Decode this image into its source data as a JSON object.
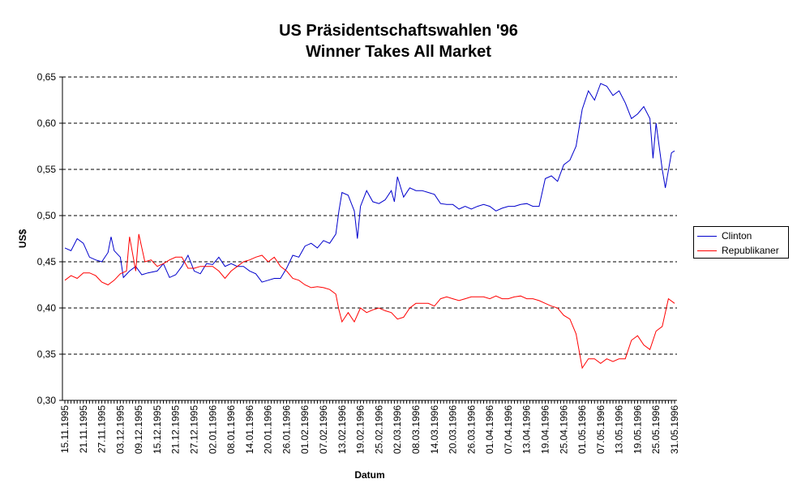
{
  "chart_data": {
    "type": "line",
    "title": "US Präsidentschaftswahlen '96",
    "subtitle": "Winner Takes All Market",
    "xlabel": "Datum",
    "ylabel": "US$",
    "ylim": [
      0.3,
      0.65
    ],
    "y_ticks": [
      "0,30",
      "0,35",
      "0,40",
      "0,45",
      "0,50",
      "0,55",
      "0,60",
      "0,65"
    ],
    "grid": "horizontal dashed",
    "legend_position": "right",
    "x_ticks": [
      "15.11.1995",
      "21.11.1995",
      "27.11.1995",
      "03.12.1995",
      "09.12.1995",
      "15.12.1995",
      "21.12.1995",
      "27.12.1995",
      "02.01.1996",
      "08.01.1996",
      "14.01.1996",
      "20.01.1996",
      "26.01.1996",
      "01.02.1996",
      "07.02.1996",
      "13.02.1996",
      "19.02.1996",
      "25.02.1996",
      "02.03.1996",
      "08.03.1996",
      "14.03.1996",
      "20.03.1996",
      "26.03.1996",
      "01.04.1996",
      "07.04.1996",
      "13.04.1996",
      "19.04.1996",
      "25.04.1996",
      "01.05.1996",
      "07.05.1996",
      "13.05.1996",
      "19.05.1996",
      "25.05.1996",
      "31.05.1996"
    ],
    "series": [
      {
        "name": "Clinton",
        "color": "#0000cc",
        "points": [
          [
            "15.11.1995",
            0.465
          ],
          [
            "17.11.1995",
            0.462
          ],
          [
            "19.11.1995",
            0.475
          ],
          [
            "21.11.1995",
            0.47
          ],
          [
            "23.11.1995",
            0.455
          ],
          [
            "25.11.1995",
            0.452
          ],
          [
            "27.11.1995",
            0.45
          ],
          [
            "29.11.1995",
            0.46
          ],
          [
            "30.11.1995",
            0.477
          ],
          [
            "01.12.1995",
            0.462
          ],
          [
            "03.12.1995",
            0.455
          ],
          [
            "04.12.1995",
            0.433
          ],
          [
            "06.12.1995",
            0.44
          ],
          [
            "08.12.1995",
            0.445
          ],
          [
            "10.12.1995",
            0.436
          ],
          [
            "12.12.1995",
            0.438
          ],
          [
            "15.12.1995",
            0.44
          ],
          [
            "17.12.1995",
            0.448
          ],
          [
            "19.12.1995",
            0.433
          ],
          [
            "21.12.1995",
            0.436
          ],
          [
            "23.12.1995",
            0.445
          ],
          [
            "25.12.1995",
            0.457
          ],
          [
            "27.12.1995",
            0.44
          ],
          [
            "29.12.1995",
            0.437
          ],
          [
            "31.12.1995",
            0.448
          ],
          [
            "02.01.1996",
            0.447
          ],
          [
            "04.01.1996",
            0.455
          ],
          [
            "06.01.1996",
            0.445
          ],
          [
            "08.01.1996",
            0.448
          ],
          [
            "10.01.1996",
            0.445
          ],
          [
            "12.01.1996",
            0.445
          ],
          [
            "14.01.1996",
            0.44
          ],
          [
            "16.01.1996",
            0.437
          ],
          [
            "18.01.1996",
            0.428
          ],
          [
            "20.01.1996",
            0.43
          ],
          [
            "22.01.1996",
            0.432
          ],
          [
            "24.01.1996",
            0.432
          ],
          [
            "26.01.1996",
            0.443
          ],
          [
            "28.01.1996",
            0.457
          ],
          [
            "30.01.1996",
            0.455
          ],
          [
            "01.02.1996",
            0.467
          ],
          [
            "03.02.1996",
            0.47
          ],
          [
            "05.02.1996",
            0.465
          ],
          [
            "07.02.1996",
            0.473
          ],
          [
            "09.02.1996",
            0.47
          ],
          [
            "11.02.1996",
            0.48
          ],
          [
            "12.02.1996",
            0.505
          ],
          [
            "13.02.1996",
            0.525
          ],
          [
            "15.02.1996",
            0.522
          ],
          [
            "17.02.1996",
            0.505
          ],
          [
            "18.02.1996",
            0.475
          ],
          [
            "19.02.1996",
            0.51
          ],
          [
            "21.02.1996",
            0.527
          ],
          [
            "23.02.1996",
            0.515
          ],
          [
            "25.02.1996",
            0.513
          ],
          [
            "27.02.1996",
            0.517
          ],
          [
            "29.02.1996",
            0.527
          ],
          [
            "01.03.1996",
            0.515
          ],
          [
            "02.03.1996",
            0.542
          ],
          [
            "04.03.1996",
            0.52
          ],
          [
            "06.03.1996",
            0.53
          ],
          [
            "08.03.1996",
            0.527
          ],
          [
            "10.03.1996",
            0.527
          ],
          [
            "12.03.1996",
            0.525
          ],
          [
            "14.03.1996",
            0.523
          ],
          [
            "16.03.1996",
            0.513
          ],
          [
            "18.03.1996",
            0.512
          ],
          [
            "20.03.1996",
            0.512
          ],
          [
            "22.03.1996",
            0.507
          ],
          [
            "24.03.1996",
            0.51
          ],
          [
            "26.03.1996",
            0.507
          ],
          [
            "28.03.1996",
            0.51
          ],
          [
            "30.03.1996",
            0.512
          ],
          [
            "01.04.1996",
            0.51
          ],
          [
            "03.04.1996",
            0.505
          ],
          [
            "05.04.1996",
            0.508
          ],
          [
            "07.04.1996",
            0.51
          ],
          [
            "09.04.1996",
            0.51
          ],
          [
            "11.04.1996",
            0.512
          ],
          [
            "13.04.1996",
            0.513
          ],
          [
            "15.04.1996",
            0.51
          ],
          [
            "17.04.1996",
            0.51
          ],
          [
            "19.04.1996",
            0.54
          ],
          [
            "21.04.1996",
            0.543
          ],
          [
            "23.04.1996",
            0.537
          ],
          [
            "25.04.1996",
            0.555
          ],
          [
            "27.04.1996",
            0.56
          ],
          [
            "29.04.1996",
            0.575
          ],
          [
            "01.05.1996",
            0.615
          ],
          [
            "03.05.1996",
            0.635
          ],
          [
            "05.05.1996",
            0.625
          ],
          [
            "07.05.1996",
            0.643
          ],
          [
            "09.05.1996",
            0.64
          ],
          [
            "11.05.1996",
            0.63
          ],
          [
            "13.05.1996",
            0.635
          ],
          [
            "15.05.1996",
            0.622
          ],
          [
            "17.05.1996",
            0.605
          ],
          [
            "19.05.1996",
            0.61
          ],
          [
            "21.05.1996",
            0.618
          ],
          [
            "23.05.1996",
            0.605
          ],
          [
            "24.05.1996",
            0.562
          ],
          [
            "25.05.1996",
            0.6
          ],
          [
            "27.05.1996",
            0.55
          ],
          [
            "28.05.1996",
            0.53
          ],
          [
            "30.05.1996",
            0.568
          ],
          [
            "31.05.1996",
            0.57
          ]
        ]
      },
      {
        "name": "Republikaner",
        "color": "#ff0000",
        "points": [
          [
            "15.11.1995",
            0.43
          ],
          [
            "17.11.1995",
            0.435
          ],
          [
            "19.11.1995",
            0.432
          ],
          [
            "21.11.1995",
            0.438
          ],
          [
            "23.11.1995",
            0.438
          ],
          [
            "25.11.1995",
            0.435
          ],
          [
            "27.11.1995",
            0.428
          ],
          [
            "29.11.1995",
            0.425
          ],
          [
            "01.12.1995",
            0.43
          ],
          [
            "03.12.1995",
            0.437
          ],
          [
            "05.12.1995",
            0.44
          ],
          [
            "06.12.1995",
            0.477
          ],
          [
            "08.12.1995",
            0.44
          ],
          [
            "09.12.1995",
            0.48
          ],
          [
            "11.12.1995",
            0.45
          ],
          [
            "13.12.1995",
            0.452
          ],
          [
            "15.12.1995",
            0.445
          ],
          [
            "17.12.1995",
            0.448
          ],
          [
            "19.12.1995",
            0.452
          ],
          [
            "21.12.1995",
            0.455
          ],
          [
            "23.12.1995",
            0.455
          ],
          [
            "25.12.1995",
            0.443
          ],
          [
            "27.12.1995",
            0.443
          ],
          [
            "29.12.1995",
            0.445
          ],
          [
            "31.12.1995",
            0.445
          ],
          [
            "02.01.1996",
            0.445
          ],
          [
            "04.01.1996",
            0.44
          ],
          [
            "06.01.1996",
            0.432
          ],
          [
            "08.01.1996",
            0.44
          ],
          [
            "10.01.1996",
            0.445
          ],
          [
            "12.01.1996",
            0.45
          ],
          [
            "14.01.1996",
            0.452
          ],
          [
            "16.01.1996",
            0.455
          ],
          [
            "18.01.1996",
            0.457
          ],
          [
            "20.01.1996",
            0.45
          ],
          [
            "22.01.1996",
            0.455
          ],
          [
            "24.01.1996",
            0.445
          ],
          [
            "26.01.1996",
            0.44
          ],
          [
            "28.01.1996",
            0.432
          ],
          [
            "30.01.1996",
            0.43
          ],
          [
            "01.02.1996",
            0.425
          ],
          [
            "03.02.1996",
            0.422
          ],
          [
            "05.02.1996",
            0.423
          ],
          [
            "07.02.1996",
            0.422
          ],
          [
            "09.02.1996",
            0.42
          ],
          [
            "11.02.1996",
            0.415
          ],
          [
            "12.02.1996",
            0.398
          ],
          [
            "13.02.1996",
            0.385
          ],
          [
            "15.02.1996",
            0.395
          ],
          [
            "17.02.1996",
            0.385
          ],
          [
            "19.02.1996",
            0.4
          ],
          [
            "21.02.1996",
            0.395
          ],
          [
            "23.02.1996",
            0.398
          ],
          [
            "25.02.1996",
            0.4
          ],
          [
            "27.02.1996",
            0.397
          ],
          [
            "29.02.1996",
            0.395
          ],
          [
            "02.03.1996",
            0.388
          ],
          [
            "04.03.1996",
            0.39
          ],
          [
            "06.03.1996",
            0.4
          ],
          [
            "08.03.1996",
            0.405
          ],
          [
            "10.03.1996",
            0.405
          ],
          [
            "12.03.1996",
            0.405
          ],
          [
            "14.03.1996",
            0.402
          ],
          [
            "16.03.1996",
            0.41
          ],
          [
            "18.03.1996",
            0.412
          ],
          [
            "20.03.1996",
            0.41
          ],
          [
            "22.03.1996",
            0.408
          ],
          [
            "24.03.1996",
            0.41
          ],
          [
            "26.03.1996",
            0.412
          ],
          [
            "28.03.1996",
            0.412
          ],
          [
            "30.03.1996",
            0.412
          ],
          [
            "01.04.1996",
            0.41
          ],
          [
            "03.04.1996",
            0.413
          ],
          [
            "05.04.1996",
            0.41
          ],
          [
            "07.04.1996",
            0.41
          ],
          [
            "09.04.1996",
            0.412
          ],
          [
            "11.04.1996",
            0.413
          ],
          [
            "13.04.1996",
            0.41
          ],
          [
            "15.04.1996",
            0.41
          ],
          [
            "17.04.1996",
            0.408
          ],
          [
            "19.04.1996",
            0.405
          ],
          [
            "21.04.1996",
            0.402
          ],
          [
            "23.04.1996",
            0.4
          ],
          [
            "25.04.1996",
            0.392
          ],
          [
            "27.04.1996",
            0.388
          ],
          [
            "29.04.1996",
            0.372
          ],
          [
            "01.05.1996",
            0.335
          ],
          [
            "03.05.1996",
            0.345
          ],
          [
            "05.05.1996",
            0.345
          ],
          [
            "07.05.1996",
            0.34
          ],
          [
            "09.05.1996",
            0.345
          ],
          [
            "11.05.1996",
            0.342
          ],
          [
            "13.05.1996",
            0.345
          ],
          [
            "15.05.1996",
            0.345
          ],
          [
            "17.05.1996",
            0.365
          ],
          [
            "19.05.1996",
            0.37
          ],
          [
            "21.05.1996",
            0.36
          ],
          [
            "23.05.1996",
            0.355
          ],
          [
            "25.05.1996",
            0.375
          ],
          [
            "27.05.1996",
            0.38
          ],
          [
            "29.05.1996",
            0.41
          ],
          [
            "31.05.1996",
            0.405
          ]
        ]
      }
    ]
  }
}
